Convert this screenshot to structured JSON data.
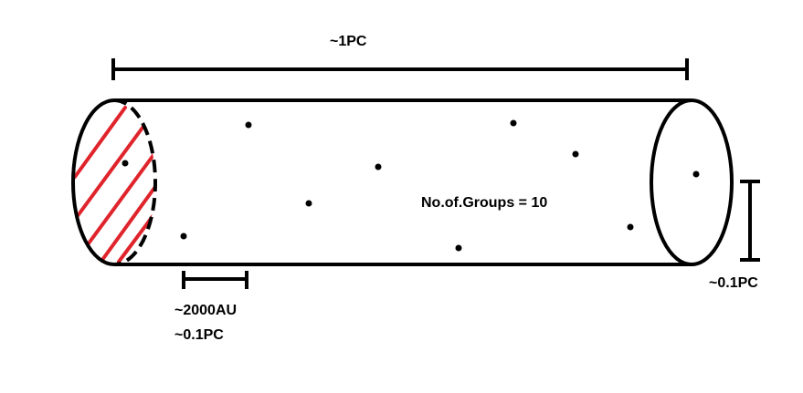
{
  "labels": {
    "top_length": "~1PC",
    "groups": "No.of.Groups = 10",
    "right_height": "~0.1PC",
    "bottom_scale_line1": "~2000AU",
    "bottom_scale_line2": "~0.1PC"
  },
  "colors": {
    "stroke": "#000000",
    "hatch": "#e0242c",
    "background": "#ffffff"
  },
  "group_count": 10
}
